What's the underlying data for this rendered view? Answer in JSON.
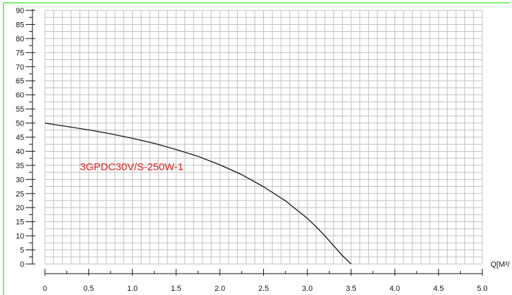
{
  "chart_data": {
    "type": "line",
    "title": "",
    "xlabel": "Q[M³/",
    "ylabel": "",
    "x_range": [
      0,
      5.0
    ],
    "y_range": [
      0,
      90
    ],
    "x_ticks": [
      "0",
      "0.5",
      "1.0",
      "1.5",
      "2.0",
      "2.5",
      "3.0",
      "3.5",
      "4.0",
      "4.5",
      "5.0"
    ],
    "x_tick_values": [
      0,
      0.5,
      1.0,
      1.5,
      2.0,
      2.5,
      3.0,
      3.5,
      4.0,
      4.5,
      5.0
    ],
    "y_ticks": [
      "0",
      "5",
      "10",
      "15",
      "20",
      "25",
      "30",
      "35",
      "40",
      "45",
      "50",
      "55",
      "60",
      "65",
      "70",
      "75",
      "80",
      "85",
      "90"
    ],
    "y_tick_values": [
      0,
      5,
      10,
      15,
      20,
      25,
      30,
      35,
      40,
      45,
      50,
      55,
      60,
      65,
      70,
      75,
      80,
      85,
      90
    ],
    "grid": true,
    "series": [
      {
        "name": "3GPDC30V/S-250W-1",
        "color": "#d72222",
        "x": [
          0,
          0.25,
          0.5,
          0.75,
          1.0,
          1.25,
          1.5,
          1.75,
          2.0,
          2.25,
          2.5,
          2.75,
          3.0,
          3.1,
          3.2,
          3.3,
          3.4,
          3.5
        ],
        "y": [
          50,
          48.8,
          47.6,
          46.2,
          44.6,
          42.8,
          40.6,
          38.2,
          35.2,
          31.7,
          27.4,
          22.4,
          16.2,
          13.2,
          10.0,
          6.5,
          3.0,
          0
        ]
      }
    ],
    "curve_color": "#111111",
    "grid_color": "#bfbfbf",
    "border_color": "#7bef6c"
  }
}
